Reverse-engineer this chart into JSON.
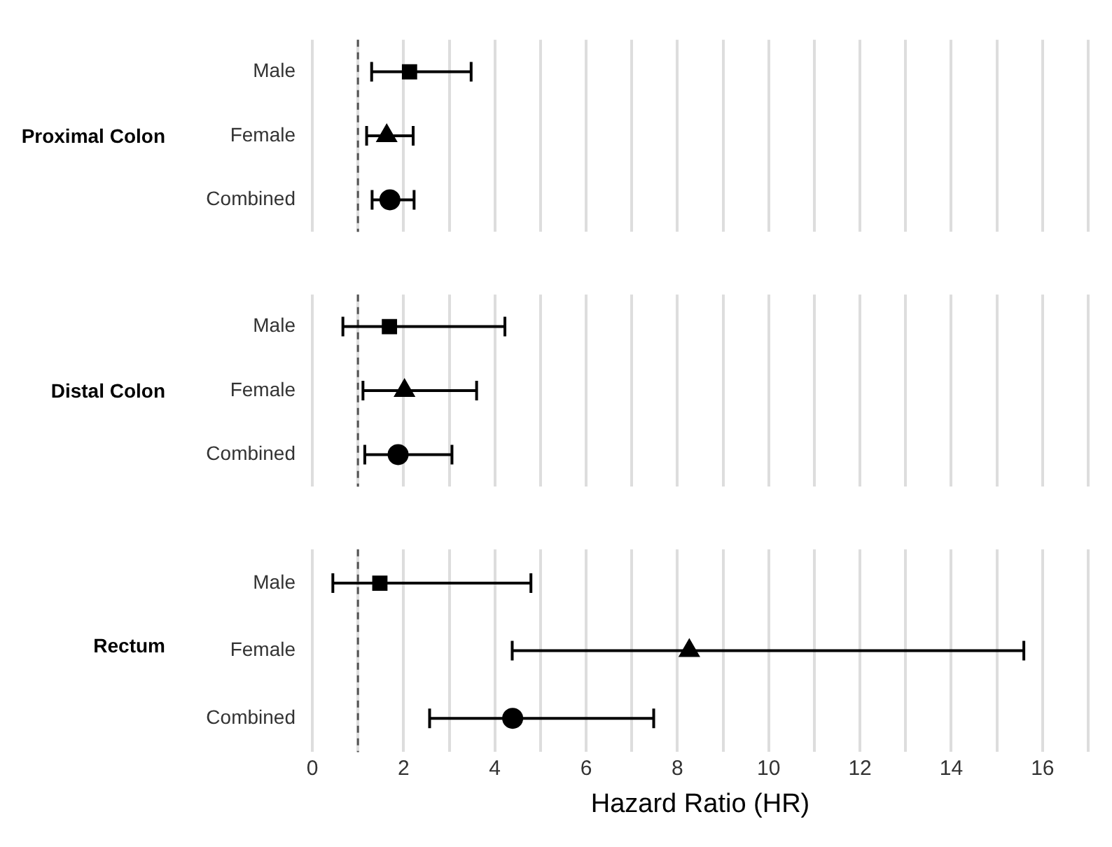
{
  "chart_data": [
    {
      "type": "scatter",
      "orientation": "horizontal",
      "ylabel": "Proximal Colon",
      "categories": [
        "Male",
        "Female",
        "Combined"
      ],
      "xlim": [
        0,
        17
      ],
      "xticks": [
        0,
        {
          "value": 1,
          "label": null
        },
        2,
        {
          "value": 3,
          "label": null
        },
        4,
        {
          "value": 5,
          "label": null
        },
        6,
        {
          "value": 7,
          "label": null
        },
        8,
        {
          "value": 9,
          "label": null
        },
        10,
        {
          "value": 11,
          "label": null
        },
        12,
        {
          "value": 13,
          "label": null
        },
        14,
        {
          "value": 15,
          "label": null
        },
        16,
        {
          "value": 17,
          "label": null
        }
      ],
      "grid": "x",
      "tick_labels": "y",
      "legend": false,
      "ref_lines": [
        {
          "axis": "x",
          "value": 1,
          "color": "#555555",
          "line_style": "dashed"
        }
      ],
      "series": [
        {
          "color": "#000000",
          "marker": "square",
          "values": [
            2.13,
            null,
            null
          ],
          "errors": [
            [
              1.3,
              3.48
            ],
            null,
            null
          ]
        },
        {
          "color": "#000000",
          "marker": "triangle",
          "values": [
            null,
            1.63,
            null
          ],
          "errors": [
            null,
            [
              1.19,
              2.21
            ],
            null
          ]
        },
        {
          "color": "#000000",
          "marker": "circle",
          "values": [
            null,
            null,
            1.7
          ],
          "errors": [
            null,
            null,
            [
              1.31,
              2.23
            ]
          ]
        }
      ]
    },
    {
      "type": "scatter",
      "orientation": "horizontal",
      "ylabel": "Distal Colon",
      "categories": [
        "Male",
        "Female",
        "Combined"
      ],
      "xlim": [
        0,
        17
      ],
      "xticks": [
        0,
        {
          "value": 1,
          "label": null
        },
        2,
        {
          "value": 3,
          "label": null
        },
        4,
        {
          "value": 5,
          "label": null
        },
        6,
        {
          "value": 7,
          "label": null
        },
        8,
        {
          "value": 9,
          "label": null
        },
        10,
        {
          "value": 11,
          "label": null
        },
        12,
        {
          "value": 13,
          "label": null
        },
        14,
        {
          "value": 15,
          "label": null
        },
        16,
        {
          "value": 17,
          "label": null
        }
      ],
      "grid": "x",
      "tick_labels": "y",
      "legend": false,
      "ref_lines": [
        {
          "axis": "x",
          "value": 1,
          "color": "#555555",
          "line_style": "dashed"
        }
      ],
      "series": [
        {
          "color": "#000000",
          "marker": "square",
          "values": [
            1.69,
            null,
            null
          ],
          "errors": [
            [
              0.67,
              4.22
            ],
            null,
            null
          ]
        },
        {
          "color": "#000000",
          "marker": "triangle",
          "values": [
            null,
            2.02,
            null
          ],
          "errors": [
            null,
            [
              1.11,
              3.6
            ],
            null
          ]
        },
        {
          "color": "#000000",
          "marker": "circle",
          "values": [
            null,
            null,
            1.88
          ],
          "errors": [
            null,
            null,
            [
              1.15,
              3.06
            ]
          ]
        }
      ]
    },
    {
      "type": "scatter",
      "orientation": "horizontal",
      "ylabel": "Rectum",
      "xlabel": "Hazard Ratio (HR)",
      "categories": [
        "Male",
        "Female",
        "Combined"
      ],
      "xlim": [
        0,
        17
      ],
      "xticks": [
        0,
        {
          "value": 1,
          "label": null
        },
        2,
        {
          "value": 3,
          "label": null
        },
        4,
        {
          "value": 5,
          "label": null
        },
        6,
        {
          "value": 7,
          "label": null
        },
        8,
        {
          "value": 9,
          "label": null
        },
        10,
        {
          "value": 11,
          "label": null
        },
        12,
        {
          "value": 13,
          "label": null
        },
        14,
        {
          "value": 15,
          "label": null
        },
        16,
        {
          "value": 17,
          "label": null
        }
      ],
      "grid": "x",
      "legend": false,
      "ref_lines": [
        {
          "axis": "x",
          "value": 1,
          "color": "#555555",
          "line_style": "dashed"
        }
      ],
      "series": [
        {
          "color": "#000000",
          "marker": "square",
          "values": [
            1.48,
            null,
            null
          ],
          "errors": [
            [
              0.45,
              4.79
            ],
            null,
            null
          ]
        },
        {
          "color": "#000000",
          "marker": "triangle",
          "values": [
            null,
            8.26,
            null
          ],
          "errors": [
            null,
            [
              4.38,
              15.59
            ],
            null
          ]
        },
        {
          "color": "#000000",
          "marker": "circle",
          "values": [
            null,
            null,
            4.39
          ],
          "errors": [
            null,
            null,
            [
              2.57,
              7.48
            ]
          ]
        }
      ]
    }
  ]
}
